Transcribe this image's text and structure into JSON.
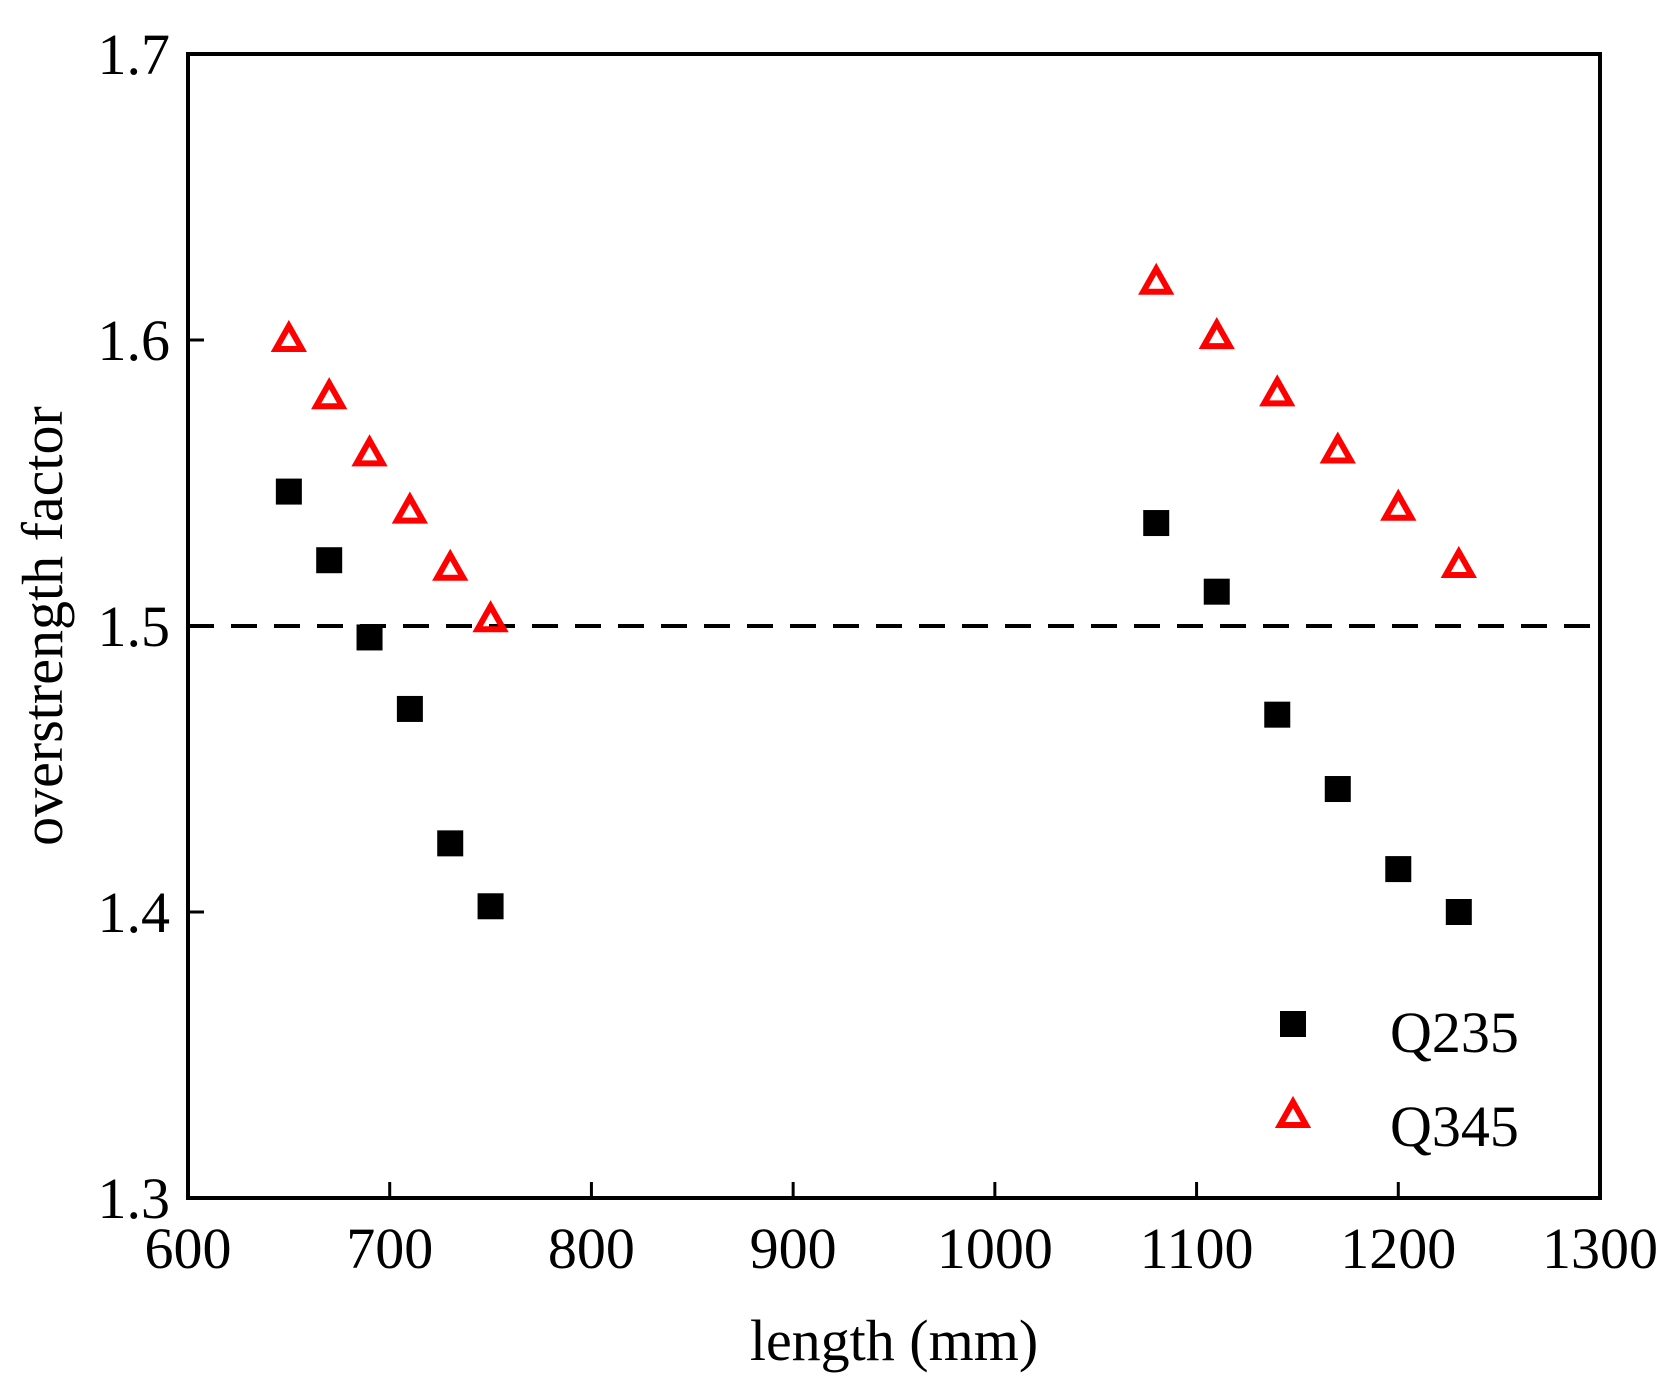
{
  "chart_data": {
    "type": "scatter",
    "title": "",
    "xlabel": "length (mm)",
    "ylabel": "overstrength factor",
    "xlim": [
      600,
      1300
    ],
    "ylim": [
      1.3,
      1.7
    ],
    "xticks": [
      600,
      700,
      800,
      900,
      1000,
      1100,
      1200,
      1300
    ],
    "yticks": [
      1.3,
      1.4,
      1.5,
      1.6,
      1.7
    ],
    "xtick_labels": [
      "600",
      "700",
      "800",
      "900",
      "1000",
      "1100",
      "1200",
      "1300"
    ],
    "ytick_labels": [
      "1.3",
      "1.4",
      "1.5",
      "1.6",
      "1.7"
    ],
    "grid": false,
    "legend_position": "bottom-right",
    "reference_line": {
      "y": 1.5,
      "style": "dashed",
      "color": "#000000"
    },
    "series": [
      {
        "name": "Q235",
        "marker": "filled-square",
        "color": "#000000",
        "x": [
          650,
          670,
          690,
          710,
          730,
          750,
          1080,
          1110,
          1140,
          1170,
          1200,
          1230
        ],
        "y": [
          1.547,
          1.523,
          1.496,
          1.471,
          1.424,
          1.402,
          1.536,
          1.512,
          1.469,
          1.443,
          1.415,
          1.4
        ]
      },
      {
        "name": "Q345",
        "marker": "open-triangle",
        "color": "#ff0000",
        "x": [
          650,
          670,
          690,
          710,
          730,
          750,
          1080,
          1110,
          1140,
          1170,
          1200,
          1230
        ],
        "y": [
          1.6,
          1.58,
          1.56,
          1.54,
          1.52,
          1.502,
          1.62,
          1.601,
          1.581,
          1.561,
          1.541,
          1.521
        ]
      }
    ]
  }
}
